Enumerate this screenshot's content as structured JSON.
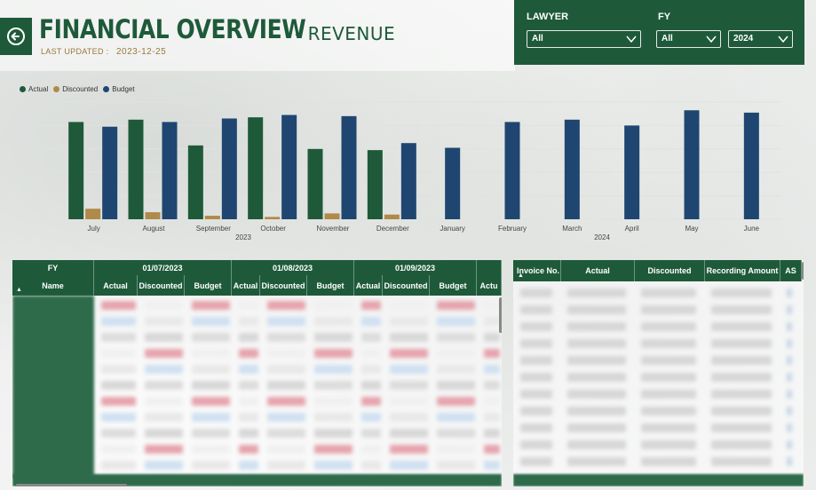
{
  "header": {
    "title": "FINANCIAL OVERVIEW",
    "subtitle": "- REVENUE",
    "last_updated_label": "LAST UPDATED :",
    "last_updated_value": "2023-12-25"
  },
  "filters": {
    "lawyer_label": "LAWYER",
    "lawyer_value": "All",
    "fy_label": "FY",
    "fy_value": "All",
    "year_value": "2024"
  },
  "colors": {
    "actual": "#1e5a3a",
    "discounted": "#b08a4a",
    "budget": "#1f4670",
    "brand": "#1e5a3a"
  },
  "legend": [
    "Actual",
    "Discounted",
    "Budget"
  ],
  "chart_data": {
    "type": "bar",
    "categories": [
      "July",
      "August",
      "September",
      "October",
      "November",
      "December",
      "January",
      "February",
      "March",
      "April",
      "May",
      "June"
    ],
    "year_labels": [
      {
        "label": "2023",
        "span": [
          0,
          5
        ]
      },
      {
        "label": "2024",
        "span": [
          6,
          11
        ]
      }
    ],
    "series": [
      {
        "name": "Actual",
        "values": [
          83,
          85,
          63,
          87,
          60,
          59,
          null,
          null,
          null,
          null,
          null,
          null
        ]
      },
      {
        "name": "Discounted",
        "values": [
          9,
          6,
          3,
          2,
          5,
          4,
          null,
          null,
          null,
          null,
          null,
          null
        ]
      },
      {
        "name": "Budget",
        "values": [
          79,
          83,
          86,
          89,
          88,
          65,
          61,
          83,
          85,
          80,
          93,
          91
        ]
      }
    ],
    "ylim": [
      0,
      100
    ],
    "grid": true,
    "legend_position": "top-left"
  },
  "left_table": {
    "fy_header": "FY",
    "name_header": "Name",
    "periods": [
      "01/07/2023",
      "01/08/2023",
      "01/09/2023"
    ],
    "sub_headers": [
      "Actual",
      "Discounted",
      "Budget",
      "Actual",
      "Discounted",
      "Budget",
      "Actual",
      "Discounted",
      "Budget",
      "Actu"
    ]
  },
  "right_table": {
    "headers": [
      "Invoice No.",
      "Actual",
      "Discounted",
      "Recording Amount",
      "AS"
    ]
  }
}
